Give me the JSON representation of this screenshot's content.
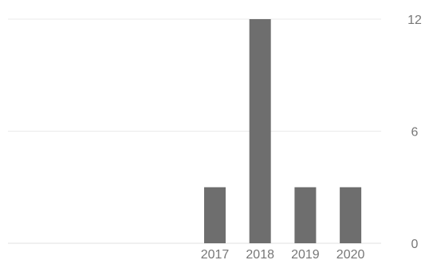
{
  "chart_data": {
    "type": "bar",
    "categories": [
      "2017",
      "2018",
      "2019",
      "2020"
    ],
    "values": [
      3,
      12,
      3,
      3
    ],
    "y_ticks": [
      "0",
      "6",
      "12"
    ],
    "ylim": [
      0,
      12
    ],
    "grid": true,
    "y_axis_position": "right",
    "title": "",
    "xlabel": "",
    "ylabel": "",
    "bar_color": "#6e6e6e",
    "grid_color": "#ebebeb",
    "label_color": "#777777"
  }
}
